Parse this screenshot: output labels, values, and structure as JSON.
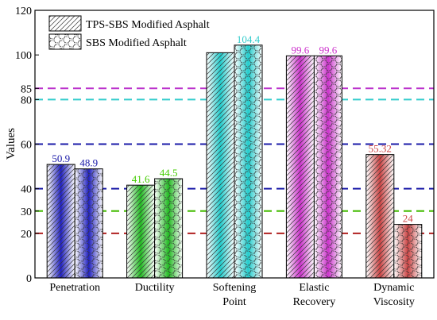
{
  "chart_data": {
    "type": "bar",
    "ylabel": "Values",
    "ylim": [
      0,
      120
    ],
    "y_ticks": [
      0,
      20,
      30,
      40,
      60,
      80,
      85,
      100,
      120
    ],
    "categories": [
      [
        "Penetration"
      ],
      [
        "Ductility"
      ],
      [
        "Softening",
        "Point"
      ],
      [
        "Elastic",
        "Recovery"
      ],
      [
        "Dynamic",
        "Viscosity"
      ]
    ],
    "series": [
      {
        "name": "TPS-SBS Modified Asphalt",
        "values": [
          50.9,
          41.6,
          101.0,
          99.6,
          55.32
        ],
        "labels": [
          "50.9",
          "41.6",
          "",
          "99.6",
          "55.32"
        ]
      },
      {
        "name": "SBS Modified Asphalt",
        "values": [
          48.9,
          44.5,
          104.4,
          99.6,
          24
        ],
        "labels": [
          "48.9",
          "44.5",
          "104.4",
          "99.6",
          "24"
        ]
      }
    ],
    "category_colors": [
      "#2020c0",
      "#22bb22",
      "#22cccc",
      "#cc33cc",
      "#cc4444"
    ],
    "label_colors": [
      "#1a1aa8",
      "#44cc00",
      "#33cccc",
      "#cc33cc",
      "#cc4444"
    ],
    "reference_lines": [
      {
        "value": 20,
        "color": "#b02020"
      },
      {
        "value": 30,
        "color": "#44bb00"
      },
      {
        "value": 40,
        "color": "#1a1aa8"
      },
      {
        "value": 60,
        "color": "#1a1aa8"
      },
      {
        "value": 80,
        "color": "#33cccc"
      },
      {
        "value": 85,
        "color": "#bb33cc"
      }
    ],
    "legend_position": "top-left"
  }
}
